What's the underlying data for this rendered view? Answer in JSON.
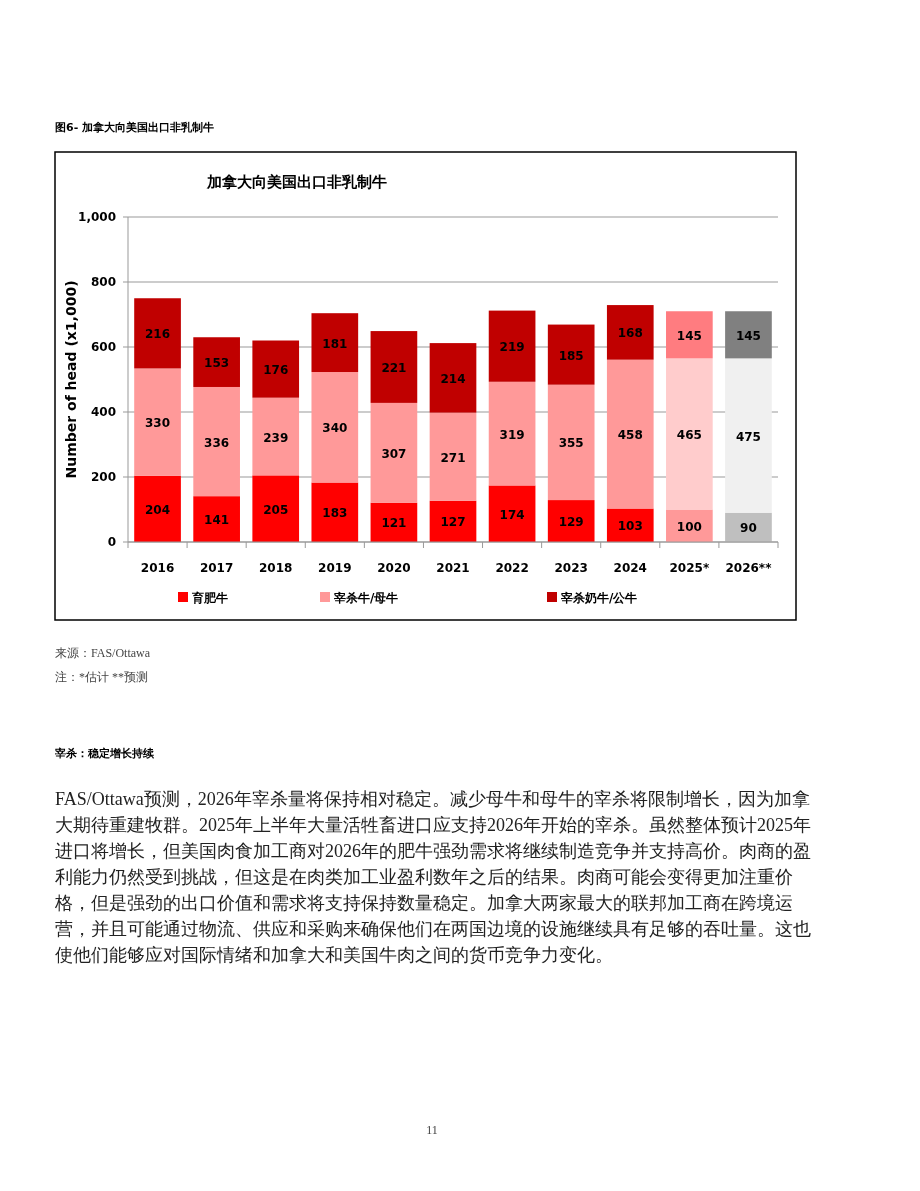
{
  "chart_data": {
    "type": "bar",
    "stacked": true,
    "title": "加拿大向美国出口非乳制牛",
    "ylabel": "Number of head (x1,000)",
    "categories": [
      "2016",
      "2017",
      "2018",
      "2019",
      "2020",
      "2021",
      "2022",
      "2023",
      "2024",
      "2025*",
      "2026**"
    ],
    "series": [
      {
        "name": "育肥牛",
        "color": "#ff0000",
        "colors": [
          "#ff0000",
          "#ff0000",
          "#ff0000",
          "#ff0000",
          "#ff0000",
          "#ff0000",
          "#ff0000",
          "#ff0000",
          "#ff0000",
          "#ff9999",
          "#bfbfbf"
        ],
        "values": [
          204,
          141,
          205,
          183,
          121,
          127,
          174,
          129,
          103,
          100,
          90
        ]
      },
      {
        "name": "宰杀牛/母牛",
        "color": "#ff9999",
        "colors": [
          "#ff9999",
          "#ff9999",
          "#ff9999",
          "#ff9999",
          "#ff9999",
          "#ff9999",
          "#ff9999",
          "#ff9999",
          "#ff9999",
          "#ffcccc",
          "#f0f0f0"
        ],
        "values": [
          330,
          336,
          239,
          340,
          307,
          271,
          319,
          355,
          458,
          465,
          475
        ]
      },
      {
        "name": "宰杀奶牛/公牛",
        "color": "#c00000",
        "colors": [
          "#c00000",
          "#c00000",
          "#c00000",
          "#c00000",
          "#c00000",
          "#c00000",
          "#c00000",
          "#c00000",
          "#c00000",
          "#ff7c80",
          "#808080"
        ],
        "values": [
          216,
          153,
          176,
          181,
          221,
          214,
          219,
          185,
          168,
          145,
          145
        ]
      }
    ],
    "ylim": [
      0,
      1000
    ],
    "yticks": [
      0,
      200,
      400,
      600,
      800,
      {
        "value": 1000,
        "label": "1,000"
      }
    ],
    "grid": "y",
    "legend": "bottom",
    "data_labels": true,
    "annotations": [
      "图6- 加拿大向美国出口非乳制牛",
      "来源：FAS/Ottawa",
      "注：*估计 **预测",
      "宰杀：稳定增长持续",
      "FAS/Ottawa预测，2026年宰杀量将保持相对稳定。减少母牛和母牛的宰杀将限制增长，因为加拿大期待重建牧群。2025年上半年大量活牲畜进口应支持2026年开始的宰杀。虽然整体预计2025年进口将增长，但美国肉食加工商对2026年的肥牛强劲需求将继续制造竞争并支持高价。肉商的盈利能力仍然受到挑战，但这是在肉类加工业盈利数年之后的结果。肉商可能会变得更加注重价格，但是强劲的出口价值和需求将支持保持数量稳定。加拿大两家最大的联邦加工商在跨境运营，并且可能通过物流、供应和采购来确保他们在两国边境的设施继续具有足够的吞吐量。这也使他们能够应对国际情绪和加拿大和美国牛肉之间的货币竞争力变化。",
      "11"
    ]
  }
}
